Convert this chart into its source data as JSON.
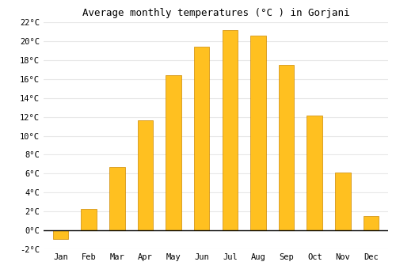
{
  "title": "Average monthly temperatures (°C ) in Gorjani",
  "months": [
    "Jan",
    "Feb",
    "Mar",
    "Apr",
    "May",
    "Jun",
    "Jul",
    "Aug",
    "Sep",
    "Oct",
    "Nov",
    "Dec"
  ],
  "values": [
    -0.9,
    2.3,
    6.7,
    11.6,
    16.4,
    19.4,
    21.2,
    20.6,
    17.5,
    12.1,
    6.1,
    1.5
  ],
  "bar_color": "#FFC020",
  "bar_edge_color": "#CC8800",
  "background_color": "#FFFFFF",
  "grid_color": "#E8E8E8",
  "ylim": [
    -2,
    22
  ],
  "yticks": [
    -2,
    0,
    2,
    4,
    6,
    8,
    10,
    12,
    14,
    16,
    18,
    20,
    22
  ],
  "title_fontsize": 9,
  "tick_fontsize": 7.5,
  "zero_line_color": "#000000",
  "bar_width": 0.55
}
